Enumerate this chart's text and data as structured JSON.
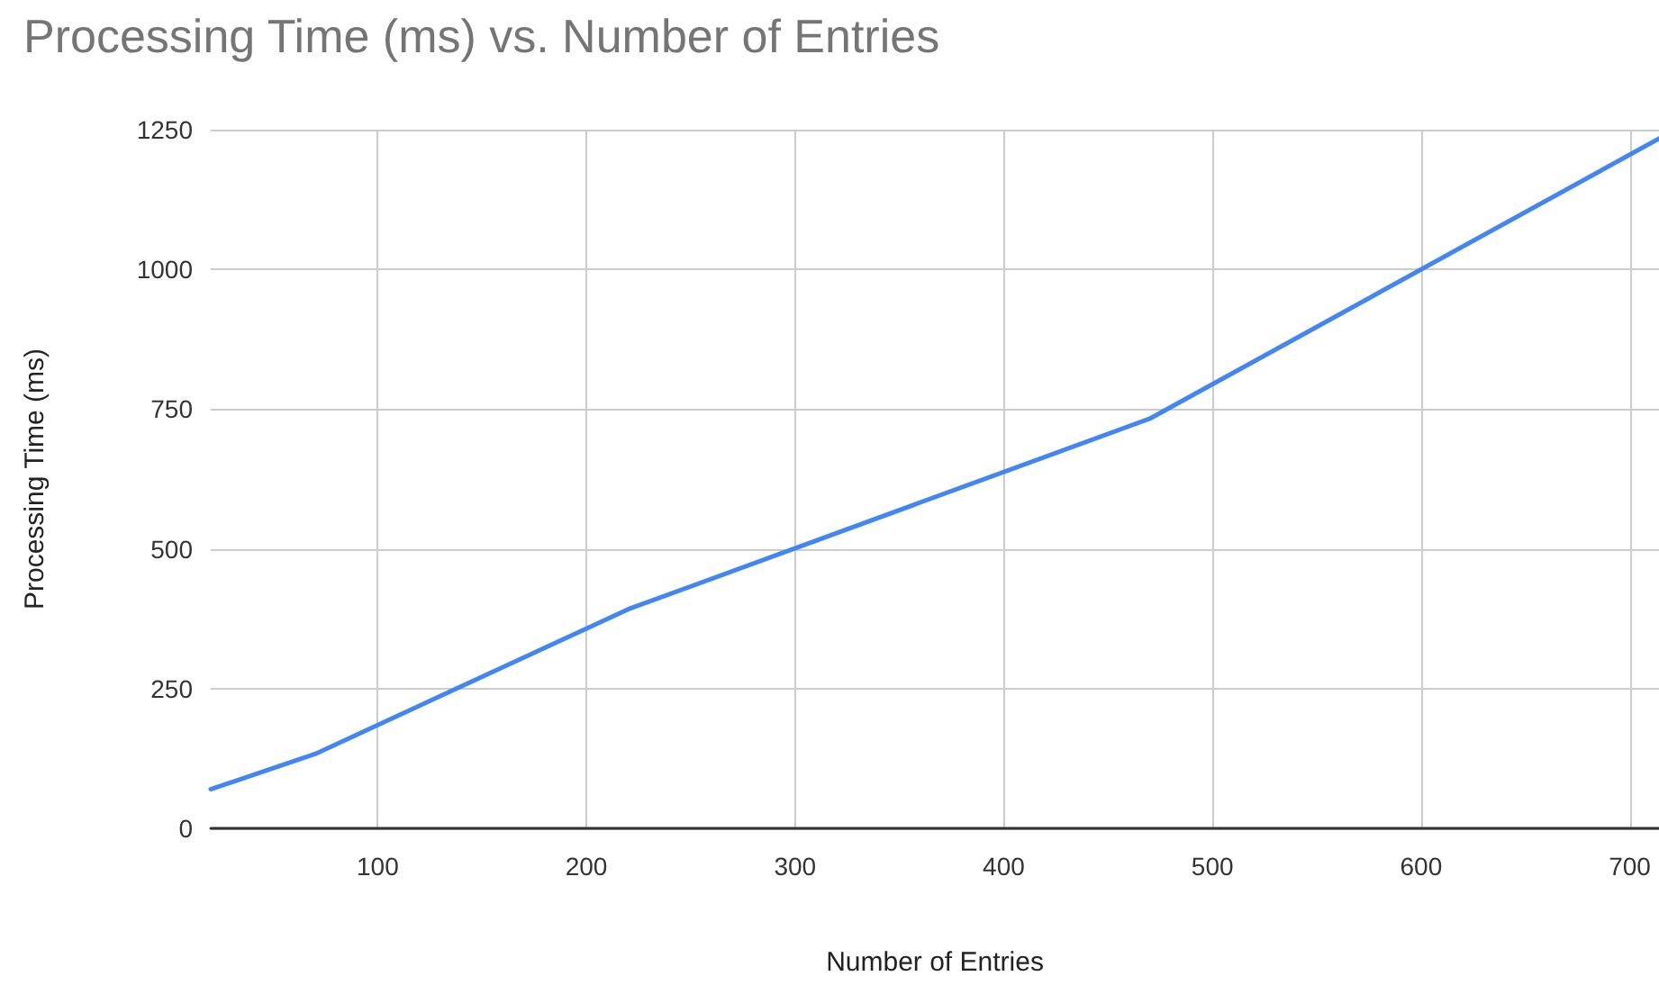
{
  "chart_data": {
    "type": "line",
    "title": "Processing Time (ms) vs. Number of Entries",
    "xlabel": "Number of Entries",
    "ylabel": "Processing Time (ms)",
    "x": [
      20,
      70,
      220,
      470,
      714
    ],
    "series": [
      {
        "color": "#4285f4",
        "values": [
          70,
          133,
          392,
          733,
          1234
        ]
      }
    ],
    "xlim": [
      20,
      714
    ],
    "xticks": [
      100,
      200,
      300,
      400,
      500,
      600,
      700
    ],
    "ylim": [
      0,
      1250
    ],
    "yticks": [
      0,
      250,
      500,
      750,
      1000,
      1250
    ],
    "grid": true,
    "marker": "none",
    "line_style": "solid"
  }
}
